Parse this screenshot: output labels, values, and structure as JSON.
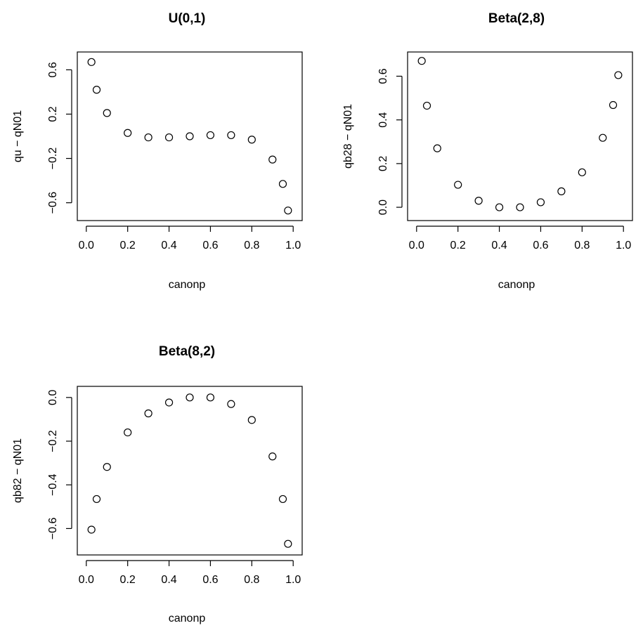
{
  "chart_data": [
    {
      "type": "scatter",
      "title": "U(0,1)",
      "xlabel": "canonp",
      "ylabel": "qu − qN01",
      "xlim": [
        0,
        1
      ],
      "ylim": [
        -0.7,
        0.7
      ],
      "xticks": [
        0.0,
        0.2,
        0.4,
        0.6,
        0.8,
        1.0
      ],
      "xtick_labels": [
        "0.0",
        "0.2",
        "0.4",
        "0.6",
        "0.8",
        "1.0"
      ],
      "yticks": [
        -0.6,
        -0.2,
        0.2,
        0.6
      ],
      "ytick_labels": [
        "−0.6",
        "−0.2",
        "0.2",
        "0.6"
      ],
      "grid": false,
      "x": [
        0.025,
        0.05,
        0.1,
        0.2,
        0.3,
        0.4,
        0.5,
        0.6,
        0.7,
        0.8,
        0.9,
        0.95,
        0.975
      ],
      "y": [
        0.67,
        0.42,
        0.21,
        0.03,
        -0.01,
        -0.01,
        0.0,
        0.01,
        0.01,
        -0.03,
        -0.21,
        -0.43,
        -0.67
      ]
    },
    {
      "type": "scatter",
      "title": "Beta(2,8)",
      "xlabel": "canonp",
      "ylabel": "qb28 − qN01",
      "xlim": [
        0,
        1
      ],
      "ylim": [
        -0.03,
        0.68
      ],
      "xticks": [
        0.0,
        0.2,
        0.4,
        0.6,
        0.8,
        1.0
      ],
      "xtick_labels": [
        "0.0",
        "0.2",
        "0.4",
        "0.6",
        "0.8",
        "1.0"
      ],
      "yticks": [
        0.0,
        0.2,
        0.4,
        0.6
      ],
      "ytick_labels": [
        "0.0",
        "0.2",
        "0.4",
        "0.6"
      ],
      "grid": false,
      "x": [
        0.025,
        0.05,
        0.1,
        0.2,
        0.3,
        0.4,
        0.5,
        0.6,
        0.7,
        0.8,
        0.9,
        0.95,
        0.975
      ],
      "y": [
        0.67,
        0.465,
        0.27,
        0.103,
        0.03,
        0.0,
        0.0,
        0.023,
        0.073,
        0.16,
        0.318,
        0.468,
        0.605
      ]
    },
    {
      "type": "scatter",
      "title": "Beta(8,2)",
      "xlabel": "canonp",
      "ylabel": "qb82 − qN01",
      "xlim": [
        0,
        1
      ],
      "ylim": [
        -0.69,
        0.02
      ],
      "xticks": [
        0.0,
        0.2,
        0.4,
        0.6,
        0.8,
        1.0
      ],
      "xtick_labels": [
        "0.0",
        "0.2",
        "0.4",
        "0.6",
        "0.8",
        "1.0"
      ],
      "yticks": [
        -0.6,
        -0.4,
        -0.2,
        0.0
      ],
      "ytick_labels": [
        "−0.6",
        "−0.4",
        "−0.2",
        "0.0"
      ],
      "grid": false,
      "x": [
        0.025,
        0.05,
        0.1,
        0.2,
        0.3,
        0.4,
        0.5,
        0.6,
        0.7,
        0.8,
        0.9,
        0.95,
        0.975
      ],
      "y": [
        -0.605,
        -0.465,
        -0.318,
        -0.16,
        -0.073,
        -0.023,
        0.0,
        0.0,
        -0.03,
        -0.103,
        -0.27,
        -0.465,
        -0.67
      ]
    }
  ]
}
